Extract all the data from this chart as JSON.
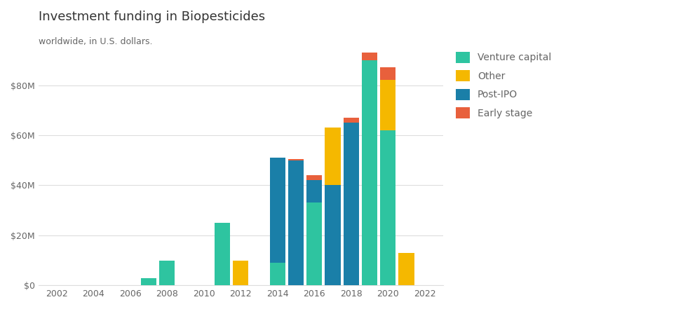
{
  "title": "Investment funding in Biopesticides",
  "subtitle": "worldwide, in U.S. dollars.",
  "years": [
    2007,
    2008,
    2011,
    2012,
    2014,
    2015,
    2016,
    2017,
    2018,
    2019,
    2020,
    2021
  ],
  "venture_capital": [
    3.0,
    10.0,
    25.0,
    0.0,
    9.0,
    0.0,
    33.0,
    0.0,
    0.0,
    90.0,
    62.0,
    0.0
  ],
  "post_ipo": [
    0.0,
    0.0,
    0.0,
    0.0,
    42.0,
    50.0,
    9.0,
    40.0,
    65.0,
    0.0,
    0.0,
    0.0
  ],
  "other": [
    0.0,
    0.0,
    0.0,
    10.0,
    0.0,
    0.0,
    0.0,
    23.0,
    0.0,
    0.0,
    20.0,
    13.0
  ],
  "early_stage": [
    0.0,
    0.0,
    0.0,
    0.0,
    0.0,
    0.5,
    2.0,
    0.0,
    2.0,
    3.0,
    5.0,
    0.0
  ],
  "color_vc": "#2ec4a0",
  "color_postipo": "#1a7fa8",
  "color_other": "#f5b800",
  "color_early": "#e8603c",
  "xlim": [
    2001.0,
    2023.0
  ],
  "ylim": [
    0,
    95
  ],
  "xticks": [
    2002,
    2004,
    2006,
    2008,
    2010,
    2012,
    2014,
    2016,
    2018,
    2020,
    2022
  ],
  "yticks": [
    0,
    20,
    40,
    60,
    80
  ],
  "ytick_labels": [
    "$0",
    "$20M",
    "$40M",
    "$60M",
    "$80M"
  ],
  "bar_width": 0.85,
  "legend_labels": [
    "Venture capital",
    "Other",
    "Post-IPO",
    "Early stage"
  ],
  "title_fontsize": 13,
  "subtitle_fontsize": 9,
  "axis_label_fontsize": 9,
  "legend_fontsize": 10,
  "text_color": "#666666",
  "title_color": "#333333",
  "background_color": "#ffffff",
  "grid_color": "#dddddd"
}
